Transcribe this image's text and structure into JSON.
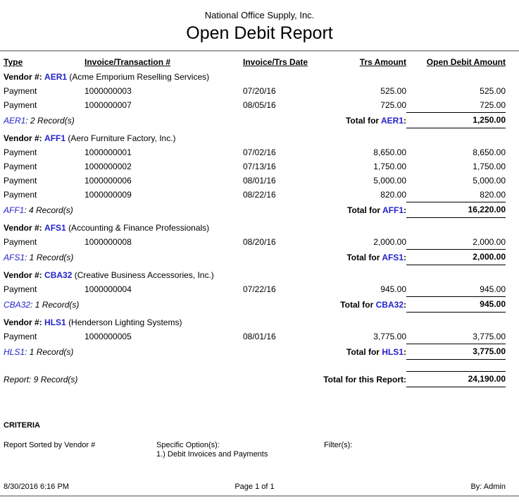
{
  "header": {
    "company": "National Office Supply, Inc.",
    "title": "Open Debit Report"
  },
  "labels": {
    "vendor_prefix": "Vendor #:",
    "total_for": "Total for ",
    "colon": ":"
  },
  "columns": {
    "type": "Type",
    "invoice": "Invoice/Transaction #",
    "date": "Invoice/Trs Date",
    "trs": "Trs Amount",
    "open": "Open Debit Amount"
  },
  "groups": [
    {
      "code": "AER1",
      "name": "(Acme Emporium Reselling Services)",
      "records": ": 2 Record(s)",
      "total": "1,250.00",
      "rows": [
        {
          "type": "Payment",
          "invoice": "1000000003",
          "date": "07/20/16",
          "trs": "525.00",
          "open": "525.00"
        },
        {
          "type": "Payment",
          "invoice": "1000000007",
          "date": "08/05/16",
          "trs": "725.00",
          "open": "725.00"
        }
      ]
    },
    {
      "code": "AFF1",
      "name": "(Aero Furniture Factory, Inc.)",
      "records": ": 4 Record(s)",
      "total": "16,220.00",
      "rows": [
        {
          "type": "Payment",
          "invoice": "1000000001",
          "date": "07/02/16",
          "trs": "8,650.00",
          "open": "8,650.00"
        },
        {
          "type": "Payment",
          "invoice": "1000000002",
          "date": "07/13/16",
          "trs": "1,750.00",
          "open": "1,750.00"
        },
        {
          "type": "Payment",
          "invoice": "1000000006",
          "date": "08/01/16",
          "trs": "5,000.00",
          "open": "5,000.00"
        },
        {
          "type": "Payment",
          "invoice": "1000000009",
          "date": "08/22/16",
          "trs": "820.00",
          "open": "820.00"
        }
      ]
    },
    {
      "code": "AFS1",
      "name": "(Accounting & Finance Professionals)",
      "records": ": 1 Record(s)",
      "total": "2,000.00",
      "rows": [
        {
          "type": "Payment",
          "invoice": "1000000008",
          "date": "08/20/16",
          "trs": "2,000.00",
          "open": "2,000.00"
        }
      ]
    },
    {
      "code": "CBA32",
      "name": "(Creative Business Accessories, Inc.)",
      "records": ": 1 Record(s)",
      "total": "945.00",
      "rows": [
        {
          "type": "Payment",
          "invoice": "1000000004",
          "date": "07/22/16",
          "trs": "945.00",
          "open": "945.00"
        }
      ]
    },
    {
      "code": "HLS1",
      "name": "(Henderson Lighting Systems)",
      "records": ": 1 Record(s)",
      "total": "3,775.00",
      "rows": [
        {
          "type": "Payment",
          "invoice": "1000000005",
          "date": "08/01/16",
          "trs": "3,775.00",
          "open": "3,775.00"
        }
      ]
    }
  ],
  "summary": {
    "records": "Report: 9 Record(s)",
    "label": "Total for this Report:",
    "total": "24,190.00"
  },
  "criteria": {
    "heading": "CRITERIA",
    "sorted": "Report Sorted by Vendor #",
    "options_label": "Specific Option(s):",
    "option_1": "1.) Debit Invoices and Payments",
    "filters_label": "Filter(s):"
  },
  "footer": {
    "datetime": "8/30/2016 6:16 PM",
    "page": "Page 1 of 1",
    "by": "By: Admin"
  },
  "colors": {
    "vendor_code": "#2222CC",
    "rule": "#a3a3a3"
  }
}
